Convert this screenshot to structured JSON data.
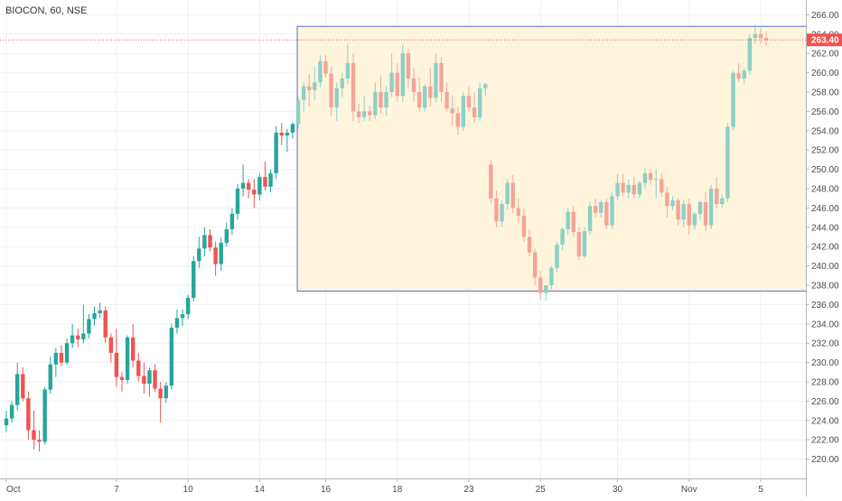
{
  "header": {
    "symbol_title": "BIOCON, 60, NSE"
  },
  "price_label": {
    "value": 263.4,
    "text": "263.40",
    "color": "#ef5350"
  },
  "colors": {
    "up": "#26a69a",
    "down": "#ef5350",
    "up_faded": "#8dd0c5",
    "down_faded": "#f4a49a",
    "rect_fill": "#fff5dc",
    "rect_border": "#5c6bd6",
    "grid": "#eef0f4"
  },
  "chart_data": {
    "type": "candlestick",
    "title": "BIOCON, 60, NSE",
    "ylim": [
      218,
      267
    ],
    "yticks": [
      220,
      222,
      224,
      226,
      228,
      230,
      232,
      234,
      236,
      238,
      240,
      242,
      244,
      246,
      248,
      250,
      252,
      254,
      256,
      258,
      260,
      262,
      264,
      266
    ],
    "xtick_labels": [
      {
        "label": "Oct",
        "index": 0
      },
      {
        "label": "7",
        "index": 20
      },
      {
        "label": "10",
        "index": 33
      },
      {
        "label": "14",
        "index": 46
      },
      {
        "label": "16",
        "index": 58
      },
      {
        "label": "18",
        "index": 71
      },
      {
        "label": "23",
        "index": 84
      },
      {
        "label": "25",
        "index": 97
      },
      {
        "label": "30",
        "index": 111
      },
      {
        "label": "Nov",
        "index": 124
      },
      {
        "label": "5",
        "index": 137
      }
    ],
    "last_price": 263.4,
    "highlight_box": {
      "start_index": 53,
      "end_index": 146,
      "low": 237.4,
      "high": 264.8
    },
    "candles": [
      [
        223.5,
        225.0,
        222.8,
        224.2
      ],
      [
        224.2,
        226.0,
        223.8,
        225.6
      ],
      [
        225.6,
        230.0,
        225.0,
        228.8
      ],
      [
        228.8,
        229.5,
        226.0,
        226.3
      ],
      [
        226.3,
        227.0,
        222.0,
        223.0
      ],
      [
        223.0,
        225.0,
        221.0,
        222.0
      ],
      [
        222.0,
        223.0,
        220.8,
        221.8
      ],
      [
        221.8,
        227.5,
        221.5,
        227.2
      ],
      [
        227.2,
        230.6,
        226.8,
        229.8
      ],
      [
        229.8,
        231.5,
        228.5,
        231.0
      ],
      [
        231.0,
        231.8,
        229.6,
        230.0
      ],
      [
        230.0,
        232.5,
        229.8,
        232.0
      ],
      [
        232.0,
        234.0,
        231.5,
        232.8
      ],
      [
        232.8,
        233.5,
        231.6,
        232.4
      ],
      [
        232.4,
        236.0,
        232.0,
        233.0
      ],
      [
        233.0,
        235.0,
        232.5,
        234.5
      ],
      [
        234.5,
        235.8,
        233.8,
        235.1
      ],
      [
        235.1,
        236.2,
        234.6,
        235.4
      ],
      [
        235.4,
        235.8,
        232.0,
        232.6
      ],
      [
        232.6,
        233.0,
        230.0,
        231.0
      ],
      [
        231.0,
        233.5,
        227.5,
        228.5
      ],
      [
        228.5,
        229.0,
        227.0,
        228.2
      ],
      [
        228.2,
        232.8,
        227.8,
        232.6
      ],
      [
        232.6,
        234.0,
        229.5,
        230.2
      ],
      [
        230.2,
        231.0,
        228.0,
        228.6
      ],
      [
        228.6,
        230.0,
        226.8,
        227.8
      ],
      [
        227.8,
        229.5,
        226.5,
        229.2
      ],
      [
        229.2,
        229.8,
        227.0,
        227.3
      ],
      [
        227.3,
        228.0,
        223.8,
        226.3
      ],
      [
        226.3,
        228.0,
        225.8,
        227.6
      ],
      [
        227.6,
        234.0,
        227.2,
        233.6
      ],
      [
        233.6,
        235.5,
        233.0,
        234.6
      ],
      [
        234.6,
        235.5,
        233.8,
        235.0
      ],
      [
        235.0,
        237.0,
        234.5,
        236.7
      ],
      [
        236.7,
        241.0,
        236.3,
        240.5
      ],
      [
        240.5,
        243.0,
        239.8,
        241.8
      ],
      [
        241.8,
        244.0,
        241.0,
        243.2
      ],
      [
        243.2,
        243.8,
        241.5,
        241.9
      ],
      [
        241.9,
        242.5,
        239.0,
        240.2
      ],
      [
        240.2,
        243.0,
        239.5,
        242.4
      ],
      [
        242.4,
        244.5,
        242.0,
        243.8
      ],
      [
        243.8,
        246.0,
        243.2,
        245.4
      ],
      [
        245.4,
        248.5,
        244.8,
        248.0
      ],
      [
        248.0,
        250.5,
        247.2,
        248.6
      ],
      [
        248.6,
        249.0,
        247.0,
        247.9
      ],
      [
        247.9,
        249.0,
        246.0,
        247.4
      ],
      [
        247.4,
        249.6,
        246.8,
        249.2
      ],
      [
        249.2,
        250.8,
        247.8,
        248.2
      ],
      [
        248.2,
        250.0,
        247.6,
        249.6
      ],
      [
        249.6,
        254.5,
        249.0,
        253.8
      ],
      [
        253.8,
        254.8,
        252.5,
        253.5
      ],
      [
        253.5,
        254.2,
        251.8,
        253.8
      ],
      [
        253.8,
        254.9,
        253.2,
        254.7
      ],
      [
        254.7,
        257.5,
        254.2,
        257.2
      ],
      [
        257.2,
        259.0,
        256.0,
        258.6
      ],
      [
        258.6,
        259.8,
        256.5,
        258.2
      ],
      [
        258.2,
        260.6,
        257.2,
        259.0
      ],
      [
        259.0,
        261.8,
        258.5,
        261.2
      ],
      [
        261.2,
        261.8,
        259.5,
        259.9
      ],
      [
        259.9,
        260.6,
        255.5,
        256.4
      ],
      [
        256.4,
        259.0,
        255.0,
        258.4
      ],
      [
        258.4,
        260.0,
        257.5,
        259.4
      ],
      [
        259.4,
        263.0,
        258.8,
        261.0
      ],
      [
        261.0,
        262.0,
        255.0,
        256.0
      ],
      [
        256.0,
        256.8,
        254.8,
        255.4
      ],
      [
        255.4,
        257.6,
        255.0,
        256.0
      ],
      [
        256.0,
        256.6,
        255.0,
        255.6
      ],
      [
        255.6,
        259.0,
        255.2,
        258.0
      ],
      [
        258.0,
        259.6,
        255.8,
        256.4
      ],
      [
        256.4,
        258.6,
        255.5,
        258.0
      ],
      [
        258.0,
        262.0,
        257.5,
        260.0
      ],
      [
        260.0,
        261.0,
        257.0,
        257.6
      ],
      [
        257.6,
        263.0,
        257.0,
        262.0
      ],
      [
        262.0,
        262.5,
        258.5,
        259.4
      ],
      [
        259.4,
        260.5,
        257.0,
        258.0
      ],
      [
        258.0,
        259.5,
        256.0,
        256.4
      ],
      [
        256.4,
        258.8,
        256.0,
        258.6
      ],
      [
        258.6,
        260.5,
        256.5,
        257.4
      ],
      [
        257.4,
        262.0,
        257.0,
        261.0
      ],
      [
        261.0,
        261.6,
        257.0,
        258.0
      ],
      [
        258.0,
        259.0,
        256.0,
        256.3
      ],
      [
        256.3,
        257.6,
        254.5,
        255.8
      ],
      [
        255.8,
        256.5,
        253.6,
        254.4
      ],
      [
        254.4,
        258.0,
        254.0,
        257.6
      ],
      [
        257.6,
        258.6,
        256.0,
        256.4
      ],
      [
        256.4,
        258.0,
        254.8,
        255.4
      ],
      [
        255.4,
        259.0,
        255.0,
        258.4
      ],
      [
        258.4,
        259.0,
        257.6,
        258.8
      ],
      [
        250.5,
        251.0,
        246.5,
        247.0
      ],
      [
        247.0,
        247.8,
        244.0,
        244.6
      ],
      [
        244.6,
        246.8,
        244.0,
        246.4
      ],
      [
        246.4,
        249.0,
        245.8,
        248.6
      ],
      [
        248.6,
        249.4,
        245.5,
        246.0
      ],
      [
        246.0,
        247.0,
        244.5,
        245.2
      ],
      [
        245.2,
        246.0,
        242.5,
        243.0
      ],
      [
        243.0,
        243.8,
        241.0,
        241.4
      ],
      [
        241.4,
        241.8,
        238.0,
        238.8
      ],
      [
        238.8,
        239.5,
        236.5,
        237.2
      ],
      [
        237.2,
        238.0,
        236.4,
        238.0
      ],
      [
        238.0,
        240.0,
        237.6,
        239.8
      ],
      [
        239.8,
        242.5,
        239.4,
        242.2
      ],
      [
        242.2,
        244.0,
        241.6,
        243.8
      ],
      [
        243.8,
        246.0,
        243.2,
        245.6
      ],
      [
        245.6,
        246.2,
        243.0,
        243.5
      ],
      [
        243.5,
        244.0,
        240.6,
        241.0
      ],
      [
        241.0,
        244.0,
        240.8,
        243.6
      ],
      [
        243.6,
        246.6,
        243.2,
        246.2
      ],
      [
        246.2,
        247.0,
        245.0,
        245.5
      ],
      [
        245.5,
        246.8,
        245.0,
        246.6
      ],
      [
        246.6,
        247.0,
        243.8,
        244.2
      ],
      [
        244.2,
        247.6,
        243.8,
        247.2
      ],
      [
        247.2,
        249.5,
        246.8,
        248.6
      ],
      [
        248.6,
        249.5,
        247.2,
        247.6
      ],
      [
        247.6,
        249.0,
        247.0,
        248.4
      ],
      [
        248.4,
        249.2,
        247.0,
        247.4
      ],
      [
        247.4,
        248.8,
        247.0,
        248.6
      ],
      [
        248.6,
        250.2,
        248.0,
        249.6
      ],
      [
        249.6,
        250.0,
        248.4,
        248.9
      ],
      [
        248.9,
        250.0,
        247.0,
        249.0
      ],
      [
        249.0,
        249.6,
        247.2,
        247.6
      ],
      [
        247.6,
        248.2,
        245.0,
        246.2
      ],
      [
        246.2,
        247.2,
        245.8,
        246.8
      ],
      [
        246.8,
        247.0,
        244.2,
        244.8
      ],
      [
        244.8,
        246.8,
        244.0,
        246.4
      ],
      [
        246.4,
        247.0,
        243.2,
        244.2
      ],
      [
        244.2,
        245.6,
        243.8,
        245.4
      ],
      [
        245.4,
        246.8,
        244.8,
        246.6
      ],
      [
        246.6,
        247.6,
        243.6,
        244.2
      ],
      [
        244.2,
        248.4,
        243.8,
        248.0
      ],
      [
        248.0,
        249.2,
        246.0,
        246.4
      ],
      [
        246.4,
        247.4,
        246.0,
        247.0
      ],
      [
        247.0,
        254.8,
        246.6,
        254.4
      ],
      [
        254.4,
        260.2,
        254.0,
        260.0
      ],
      [
        260.0,
        261.0,
        259.0,
        259.4
      ],
      [
        259.4,
        260.5,
        258.8,
        260.2
      ],
      [
        260.2,
        264.0,
        259.8,
        263.6
      ],
      [
        263.6,
        265.0,
        263.0,
        264.0
      ],
      [
        264.0,
        264.6,
        263.0,
        263.6
      ],
      [
        263.6,
        264.2,
        262.8,
        263.4
      ]
    ]
  }
}
